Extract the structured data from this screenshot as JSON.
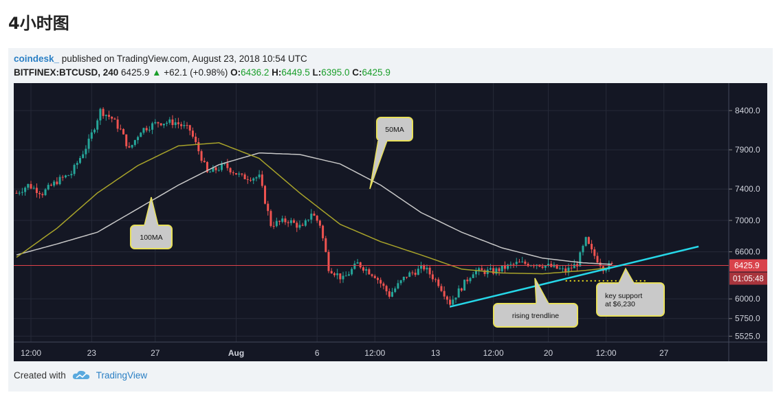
{
  "page": {
    "title": "4小时图"
  },
  "header": {
    "author": "coindesk_",
    "published": "published on TradingView.com, August 23, 2018 10:54 UTC",
    "symbol": "BITFINEX:BTCUSD, 240",
    "last": "6425.9",
    "change": "+62.1 (+0.98%)",
    "o_label": "O:",
    "o": "6436.2",
    "h_label": "H:",
    "h": "6449.5",
    "l_label": "L:",
    "l": "6395.0",
    "c_label": "C:",
    "c": "6425.9"
  },
  "footer": {
    "created_with": "Created with",
    "brand": "TradingView"
  },
  "colors": {
    "background": "#141724",
    "grid": "#262a38",
    "up": "#26a69a",
    "down": "#ef5350",
    "ma50": "#a8a32a",
    "ma100": "#c8c8c8",
    "trendline": "#26d7e8",
    "price_line": "#e0434c",
    "support": "#f2e21b"
  },
  "chart_data": {
    "type": "candlestick",
    "y_ticks": [
      "8400.0",
      "7900.0",
      "7400.0",
      "7000.0",
      "6600.0",
      "6000.0",
      "5750.0",
      "5525.0"
    ],
    "x_ticks": [
      "12:00",
      "23",
      "27",
      "Aug",
      "6",
      "12:00",
      "13",
      "12:00",
      "20",
      "12:00",
      "27"
    ],
    "ylim": [
      5450,
      8750
    ],
    "price_label": "6425.9",
    "countdown_label": "01:05:48",
    "series": [
      {
        "name": "BTCUSD",
        "keypoints": [
          [
            0,
            7350
          ],
          [
            4,
            7450
          ],
          [
            9,
            7350
          ],
          [
            14,
            7500
          ],
          [
            19,
            7600
          ],
          [
            25,
            8000
          ],
          [
            29,
            8400
          ],
          [
            33,
            8300
          ],
          [
            36,
            8150
          ],
          [
            39,
            7900
          ],
          [
            43,
            8150
          ],
          [
            49,
            8250
          ],
          [
            55,
            8250
          ],
          [
            60,
            8150
          ],
          [
            64,
            7800
          ],
          [
            66,
            7600
          ],
          [
            72,
            7700
          ],
          [
            78,
            7550
          ],
          [
            84,
            7550
          ],
          [
            88,
            6950
          ],
          [
            94,
            7000
          ],
          [
            99,
            6900
          ],
          [
            102,
            7100
          ],
          [
            105,
            6950
          ],
          [
            108,
            6400
          ],
          [
            113,
            6250
          ],
          [
            118,
            6450
          ],
          [
            124,
            6300
          ],
          [
            129,
            6050
          ],
          [
            135,
            6300
          ],
          [
            141,
            6400
          ],
          [
            146,
            6200
          ],
          [
            150,
            5950
          ],
          [
            154,
            6150
          ],
          [
            158,
            6350
          ],
          [
            165,
            6350
          ],
          [
            173,
            6450
          ],
          [
            180,
            6450
          ],
          [
            186,
            6400
          ],
          [
            190,
            6350
          ],
          [
            194,
            6450
          ],
          [
            197,
            6750
          ],
          [
            199,
            6600
          ],
          [
            203,
            6400
          ],
          [
            206,
            6430
          ]
        ]
      },
      {
        "name": "50MA",
        "keypoints": [
          [
            0,
            6530
          ],
          [
            14,
            6900
          ],
          [
            28,
            7350
          ],
          [
            42,
            7700
          ],
          [
            56,
            7950
          ],
          [
            70,
            7990
          ],
          [
            84,
            7790
          ],
          [
            98,
            7350
          ],
          [
            112,
            6950
          ],
          [
            126,
            6730
          ],
          [
            140,
            6560
          ],
          [
            154,
            6380
          ],
          [
            168,
            6330
          ],
          [
            182,
            6320
          ],
          [
            196,
            6360
          ],
          [
            206,
            6400
          ]
        ]
      },
      {
        "name": "100MA",
        "keypoints": [
          [
            0,
            6560
          ],
          [
            14,
            6700
          ],
          [
            28,
            6850
          ],
          [
            42,
            7150
          ],
          [
            56,
            7450
          ],
          [
            70,
            7710
          ],
          [
            84,
            7860
          ],
          [
            98,
            7840
          ],
          [
            112,
            7720
          ],
          [
            126,
            7450
          ],
          [
            140,
            7100
          ],
          [
            154,
            6850
          ],
          [
            168,
            6650
          ],
          [
            182,
            6520
          ],
          [
            196,
            6460
          ],
          [
            206,
            6440
          ]
        ]
      }
    ],
    "annotations": [
      {
        "label": "50MA"
      },
      {
        "label": "100MA"
      },
      {
        "label": "rising trendline",
        "from": [
          150,
          5900
        ],
        "to": [
          206,
          6400
        ]
      },
      {
        "label": "key support\nat $6,230",
        "support": 6230
      }
    ]
  }
}
